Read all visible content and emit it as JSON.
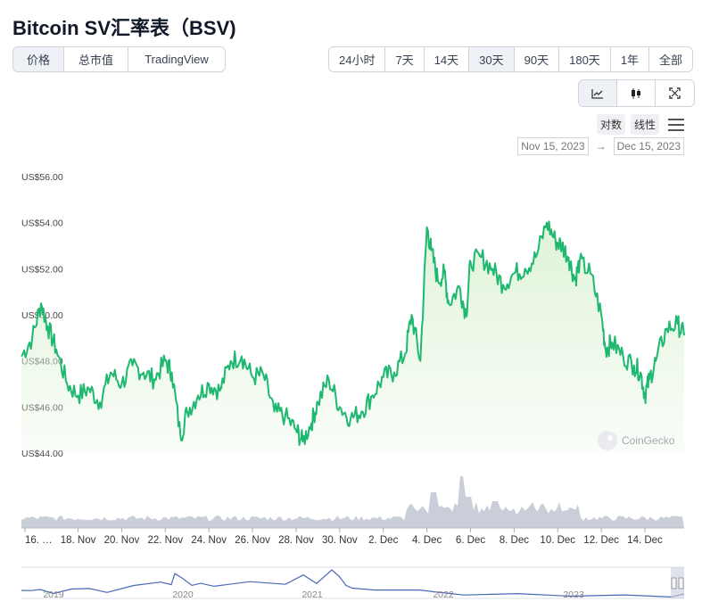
{
  "title": "Bitcoin SV汇率表（BSV)",
  "view_tabs": [
    {
      "label": "价格",
      "active": true
    },
    {
      "label": "总市值",
      "active": false
    },
    {
      "label": "TradingView",
      "active": false
    }
  ],
  "range_tabs": [
    {
      "label": "24小时",
      "active": false
    },
    {
      "label": "7天",
      "active": false
    },
    {
      "label": "14天",
      "active": false
    },
    {
      "label": "30天",
      "active": true
    },
    {
      "label": "90天",
      "active": false
    },
    {
      "label": "180天",
      "active": false
    },
    {
      "label": "1年",
      "active": false
    },
    {
      "label": "全部",
      "active": false
    }
  ],
  "chart_type_icons": [
    "line-chart-icon",
    "candlestick-icon",
    "fullscreen-icon"
  ],
  "scale_buttons": [
    "对数",
    "线性"
  ],
  "date_range": {
    "from": "Nov 15, 2023",
    "separator": "→",
    "to": "Dec 15, 2023"
  },
  "watermark": "CoinGecko",
  "colors": {
    "line": "#1fb870",
    "area": "#dff3d8",
    "volume": "#c9ced9",
    "navigator": "#4a68b8"
  },
  "chart_data": {
    "type": "area",
    "title": "",
    "ylabel": "",
    "xlabel": "",
    "ylim": [
      44,
      56
    ],
    "yticks": [
      "US$56.00",
      "US$54.00",
      "US$52.00",
      "US$50.00",
      "US$48.00",
      "US$46.00",
      "US$44.00"
    ],
    "ytick_values": [
      56,
      54,
      52,
      50,
      48,
      46,
      44
    ],
    "xlim_days": [
      15.4,
      45.8
    ],
    "xticks": [
      "16. …",
      "18. Nov",
      "20. Nov",
      "22. Nov",
      "24. Nov",
      "26. Nov",
      "28. Nov",
      "30. Nov",
      "2. Dec",
      "4. Dec",
      "6. Dec",
      "8. Dec",
      "10. Dec",
      "12. Dec",
      "14. Dec"
    ],
    "xtick_days": [
      16,
      18,
      20,
      22,
      24,
      26,
      28,
      30,
      32,
      34,
      36,
      38,
      40,
      42,
      44
    ],
    "series": [
      {
        "x_days": [
          15.4,
          15.9,
          16.3,
          16.6,
          17.0,
          17.5,
          18.0,
          18.5,
          19.0,
          19.5,
          20.0,
          20.5,
          21.0,
          21.5,
          22.0,
          22.3,
          22.7,
          23.0,
          23.5,
          24.0,
          24.5,
          25.0,
          25.5,
          26.0,
          26.5,
          27.0,
          27.5,
          28.0,
          28.3,
          28.7,
          29.0,
          29.5,
          30.0,
          30.5,
          31.0,
          31.5,
          32.0,
          32.5,
          33.0,
          33.3,
          33.7,
          34.0,
          34.2,
          34.5,
          34.8,
          35.0,
          35.5,
          35.8,
          36.0,
          36.5,
          37.0,
          37.5,
          38.0,
          38.5,
          39.0,
          39.5,
          39.9,
          40.2,
          40.5,
          40.8,
          41.0,
          41.5,
          42.0,
          42.2,
          42.5,
          43.0,
          43.5,
          43.8,
          44.0,
          44.2,
          44.5,
          45.0,
          45.5,
          45.8
        ],
        "y": [
          48.2,
          49.0,
          50.5,
          49.5,
          48.5,
          47.0,
          46.5,
          46.8,
          46.2,
          47.5,
          47.0,
          47.8,
          47.5,
          47.2,
          48.0,
          47.5,
          44.7,
          45.8,
          46.5,
          47.0,
          46.7,
          48.0,
          48.2,
          47.3,
          47.4,
          45.8,
          45.6,
          45.0,
          44.5,
          45.3,
          46.2,
          47.2,
          46.0,
          45.5,
          45.8,
          46.5,
          47.3,
          47.5,
          48.3,
          50.0,
          48.0,
          53.8,
          52.8,
          51.5,
          51.8,
          50.5,
          51.2,
          50.0,
          52.3,
          52.5,
          52.0,
          51.3,
          51.8,
          52.0,
          52.5,
          54.0,
          53.2,
          53.0,
          52.5,
          51.5,
          52.3,
          51.8,
          50.0,
          48.5,
          48.8,
          48.2,
          47.8,
          47.5,
          46.5,
          47.2,
          48.0,
          49.4,
          49.6,
          49.1
        ]
      }
    ],
    "navigator": {
      "xticks": [
        "2019",
        "2020",
        "2021",
        "2022",
        "2023"
      ]
    }
  }
}
